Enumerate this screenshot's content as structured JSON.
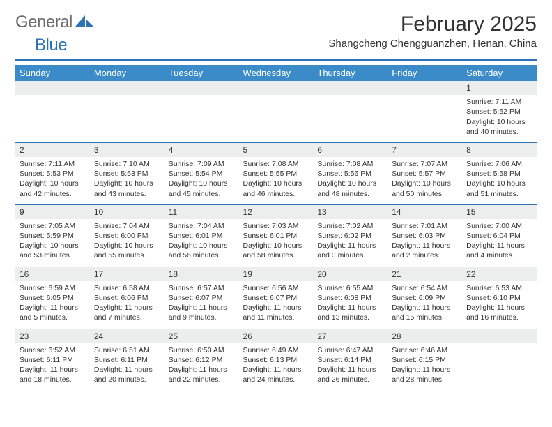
{
  "colors": {
    "brand_blue": "#2d72b5",
    "header_blue": "#3b8bc9",
    "daynum_bg": "#eceded",
    "text": "#333333",
    "logo_gray": "#6a6a6a",
    "white": "#ffffff"
  },
  "typography": {
    "title_fontsize": 30,
    "location_fontsize": 15,
    "dayheader_fontsize": 13,
    "cell_fontsize": 10.5,
    "logo_fontsize": 24
  },
  "logo": {
    "word1": "General",
    "word2": "Blue"
  },
  "title": "February 2025",
  "location": "Shangcheng Chengguanzhen, Henan, China",
  "day_headers": [
    "Sunday",
    "Monday",
    "Tuesday",
    "Wednesday",
    "Thursday",
    "Friday",
    "Saturday"
  ],
  "weeks": [
    [
      {
        "n": "",
        "sr": "",
        "ss": "",
        "dl": ""
      },
      {
        "n": "",
        "sr": "",
        "ss": "",
        "dl": ""
      },
      {
        "n": "",
        "sr": "",
        "ss": "",
        "dl": ""
      },
      {
        "n": "",
        "sr": "",
        "ss": "",
        "dl": ""
      },
      {
        "n": "",
        "sr": "",
        "ss": "",
        "dl": ""
      },
      {
        "n": "",
        "sr": "",
        "ss": "",
        "dl": ""
      },
      {
        "n": "1",
        "sr": "Sunrise: 7:11 AM",
        "ss": "Sunset: 5:52 PM",
        "dl": "Daylight: 10 hours and 40 minutes."
      }
    ],
    [
      {
        "n": "2",
        "sr": "Sunrise: 7:11 AM",
        "ss": "Sunset: 5:53 PM",
        "dl": "Daylight: 10 hours and 42 minutes."
      },
      {
        "n": "3",
        "sr": "Sunrise: 7:10 AM",
        "ss": "Sunset: 5:53 PM",
        "dl": "Daylight: 10 hours and 43 minutes."
      },
      {
        "n": "4",
        "sr": "Sunrise: 7:09 AM",
        "ss": "Sunset: 5:54 PM",
        "dl": "Daylight: 10 hours and 45 minutes."
      },
      {
        "n": "5",
        "sr": "Sunrise: 7:08 AM",
        "ss": "Sunset: 5:55 PM",
        "dl": "Daylight: 10 hours and 46 minutes."
      },
      {
        "n": "6",
        "sr": "Sunrise: 7:08 AM",
        "ss": "Sunset: 5:56 PM",
        "dl": "Daylight: 10 hours and 48 minutes."
      },
      {
        "n": "7",
        "sr": "Sunrise: 7:07 AM",
        "ss": "Sunset: 5:57 PM",
        "dl": "Daylight: 10 hours and 50 minutes."
      },
      {
        "n": "8",
        "sr": "Sunrise: 7:06 AM",
        "ss": "Sunset: 5:58 PM",
        "dl": "Daylight: 10 hours and 51 minutes."
      }
    ],
    [
      {
        "n": "9",
        "sr": "Sunrise: 7:05 AM",
        "ss": "Sunset: 5:59 PM",
        "dl": "Daylight: 10 hours and 53 minutes."
      },
      {
        "n": "10",
        "sr": "Sunrise: 7:04 AM",
        "ss": "Sunset: 6:00 PM",
        "dl": "Daylight: 10 hours and 55 minutes."
      },
      {
        "n": "11",
        "sr": "Sunrise: 7:04 AM",
        "ss": "Sunset: 6:01 PM",
        "dl": "Daylight: 10 hours and 56 minutes."
      },
      {
        "n": "12",
        "sr": "Sunrise: 7:03 AM",
        "ss": "Sunset: 6:01 PM",
        "dl": "Daylight: 10 hours and 58 minutes."
      },
      {
        "n": "13",
        "sr": "Sunrise: 7:02 AM",
        "ss": "Sunset: 6:02 PM",
        "dl": "Daylight: 11 hours and 0 minutes."
      },
      {
        "n": "14",
        "sr": "Sunrise: 7:01 AM",
        "ss": "Sunset: 6:03 PM",
        "dl": "Daylight: 11 hours and 2 minutes."
      },
      {
        "n": "15",
        "sr": "Sunrise: 7:00 AM",
        "ss": "Sunset: 6:04 PM",
        "dl": "Daylight: 11 hours and 4 minutes."
      }
    ],
    [
      {
        "n": "16",
        "sr": "Sunrise: 6:59 AM",
        "ss": "Sunset: 6:05 PM",
        "dl": "Daylight: 11 hours and 5 minutes."
      },
      {
        "n": "17",
        "sr": "Sunrise: 6:58 AM",
        "ss": "Sunset: 6:06 PM",
        "dl": "Daylight: 11 hours and 7 minutes."
      },
      {
        "n": "18",
        "sr": "Sunrise: 6:57 AM",
        "ss": "Sunset: 6:07 PM",
        "dl": "Daylight: 11 hours and 9 minutes."
      },
      {
        "n": "19",
        "sr": "Sunrise: 6:56 AM",
        "ss": "Sunset: 6:07 PM",
        "dl": "Daylight: 11 hours and 11 minutes."
      },
      {
        "n": "20",
        "sr": "Sunrise: 6:55 AM",
        "ss": "Sunset: 6:08 PM",
        "dl": "Daylight: 11 hours and 13 minutes."
      },
      {
        "n": "21",
        "sr": "Sunrise: 6:54 AM",
        "ss": "Sunset: 6:09 PM",
        "dl": "Daylight: 11 hours and 15 minutes."
      },
      {
        "n": "22",
        "sr": "Sunrise: 6:53 AM",
        "ss": "Sunset: 6:10 PM",
        "dl": "Daylight: 11 hours and 16 minutes."
      }
    ],
    [
      {
        "n": "23",
        "sr": "Sunrise: 6:52 AM",
        "ss": "Sunset: 6:11 PM",
        "dl": "Daylight: 11 hours and 18 minutes."
      },
      {
        "n": "24",
        "sr": "Sunrise: 6:51 AM",
        "ss": "Sunset: 6:11 PM",
        "dl": "Daylight: 11 hours and 20 minutes."
      },
      {
        "n": "25",
        "sr": "Sunrise: 6:50 AM",
        "ss": "Sunset: 6:12 PM",
        "dl": "Daylight: 11 hours and 22 minutes."
      },
      {
        "n": "26",
        "sr": "Sunrise: 6:49 AM",
        "ss": "Sunset: 6:13 PM",
        "dl": "Daylight: 11 hours and 24 minutes."
      },
      {
        "n": "27",
        "sr": "Sunrise: 6:47 AM",
        "ss": "Sunset: 6:14 PM",
        "dl": "Daylight: 11 hours and 26 minutes."
      },
      {
        "n": "28",
        "sr": "Sunrise: 6:46 AM",
        "ss": "Sunset: 6:15 PM",
        "dl": "Daylight: 11 hours and 28 minutes."
      },
      {
        "n": "",
        "sr": "",
        "ss": "",
        "dl": ""
      }
    ]
  ]
}
